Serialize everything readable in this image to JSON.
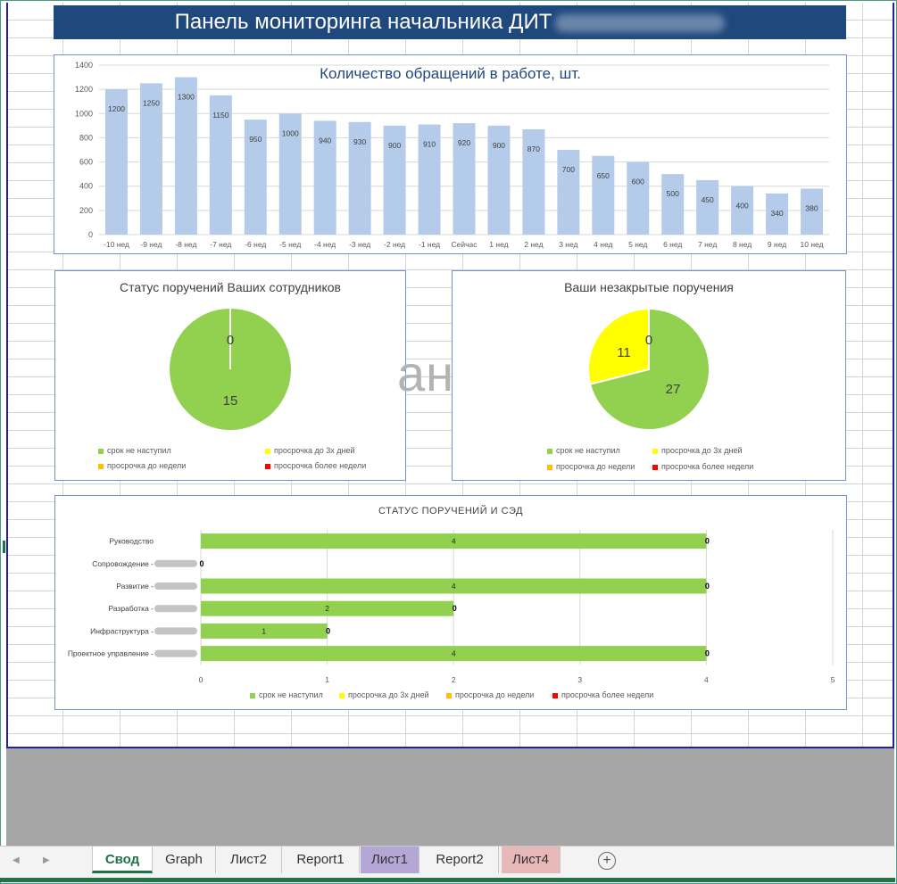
{
  "header": {
    "title": "Панель мониторинга начальника ДИТ"
  },
  "watermark": "ан",
  "colors": {
    "banner": "#1f497d",
    "bar": "#b4cbe9",
    "green": "#92d050",
    "yellow": "#ffff00",
    "orange": "#ffc000",
    "red": "#ff0000"
  },
  "chart_data": [
    {
      "type": "bar",
      "title": "Количество обращений в работе, шт.",
      "categories": [
        "-10 нед",
        "-9 нед",
        "-8 нед",
        "-7 нед",
        "-6 нед",
        "-5 нед",
        "-4 нед",
        "-3 нед",
        "-2 нед",
        "-1 нед",
        "Сейчас",
        "1 нед",
        "2 нед",
        "3 нед",
        "4 нед",
        "5 нед",
        "6 нед",
        "7 нед",
        "8 нед",
        "9 нед",
        "10 нед"
      ],
      "values": [
        1200,
        1250,
        1300,
        1150,
        950,
        1000,
        940,
        930,
        900,
        910,
        920,
        900,
        870,
        700,
        650,
        600,
        500,
        450,
        400,
        340,
        380
      ],
      "ylim": [
        0,
        1400
      ],
      "yticks": [
        "0",
        "200",
        "400",
        "600",
        "800",
        "1000",
        "1200",
        "1400"
      ],
      "grid": true
    },
    {
      "type": "pie",
      "title": "Статус поручений Ваших сотрудников",
      "labels": [
        "срок не наступил",
        "просрочка до 3х дней",
        "просрочка до недели",
        "просрочка более недели"
      ],
      "values": [
        15,
        0,
        0,
        0
      ],
      "shown_labels": [
        "15",
        "0"
      ],
      "legend": "bottom"
    },
    {
      "type": "pie",
      "title": "Ваши незакрытые поручения",
      "labels": [
        "срок не наступил",
        "просрочка до 3х дней",
        "просрочка до недели",
        "просрочка более недели"
      ],
      "values": [
        27,
        11,
        0,
        0
      ],
      "shown_labels": [
        "27",
        "11",
        "0"
      ],
      "legend": "bottom"
    },
    {
      "type": "bar",
      "orientation": "horizontal",
      "title": "СТАТУС ПОРУЧЕНИЙ И СЭД",
      "categories": [
        "Руководство",
        "Сопровождение -",
        "Развитие -",
        "Разработка -",
        "Инфраструктура -",
        "Проектное управление -"
      ],
      "series": [
        {
          "name": "срок не наступил",
          "values": [
            4,
            0,
            4,
            2,
            1,
            4
          ]
        },
        {
          "name": "просрочка до 3х дней",
          "values": [
            0,
            0,
            0,
            0,
            0,
            0
          ]
        },
        {
          "name": "просрочка до недели",
          "values": [
            0,
            0,
            0,
            0,
            0,
            0
          ]
        },
        {
          "name": "просрочка более недели",
          "values": [
            0,
            0,
            0,
            0,
            0,
            0
          ]
        }
      ],
      "value_labels": [
        "4",
        "",
        "4",
        "2",
        "1",
        "4"
      ],
      "end_labels": [
        "0",
        "0",
        "0",
        "0",
        "0",
        "0"
      ],
      "xlim": [
        0,
        5
      ],
      "xticks": [
        "0",
        "1",
        "2",
        "3",
        "4",
        "5"
      ],
      "legend": "bottom"
    }
  ],
  "tabs": {
    "items": [
      {
        "label": "Свод"
      },
      {
        "label": "Graph"
      },
      {
        "label": "Лист2"
      },
      {
        "label": "Report1"
      },
      {
        "label": "Лист1"
      },
      {
        "label": "Report2"
      },
      {
        "label": "Лист4"
      }
    ],
    "add_icon": "plus-circle-icon",
    "prev_icon": "triangle-left-icon",
    "next_icon": "triangle-right-icon"
  }
}
